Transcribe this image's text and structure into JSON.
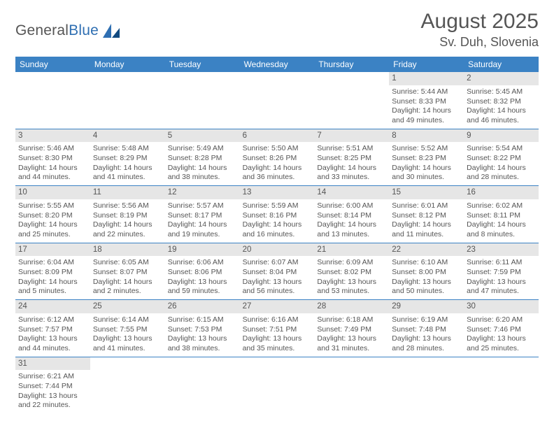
{
  "logo": {
    "word1": "General",
    "word2": "Blue"
  },
  "header": {
    "month_title": "August 2025",
    "location": "Sv. Duh, Slovenia"
  },
  "theme": {
    "header_bg": "#3b82c4",
    "header_text": "#ffffff",
    "daynum_bg": "#e6e6e6",
    "text_color": "#555555",
    "rule_color": "#3b82c4",
    "page_bg": "#ffffff",
    "month_title_fontsize": 30,
    "location_fontsize": 18,
    "weekday_fontsize": 12,
    "cell_fontsize": 10.5,
    "logo_fontsize": 21
  },
  "weekdays": [
    "Sunday",
    "Monday",
    "Tuesday",
    "Wednesday",
    "Thursday",
    "Friday",
    "Saturday"
  ],
  "first_weekday_index": 5,
  "days": [
    {
      "n": "1",
      "sunrise": "Sunrise: 5:44 AM",
      "sunset": "Sunset: 8:33 PM",
      "daylight": "Daylight: 14 hours and 49 minutes."
    },
    {
      "n": "2",
      "sunrise": "Sunrise: 5:45 AM",
      "sunset": "Sunset: 8:32 PM",
      "daylight": "Daylight: 14 hours and 46 minutes."
    },
    {
      "n": "3",
      "sunrise": "Sunrise: 5:46 AM",
      "sunset": "Sunset: 8:30 PM",
      "daylight": "Daylight: 14 hours and 44 minutes."
    },
    {
      "n": "4",
      "sunrise": "Sunrise: 5:48 AM",
      "sunset": "Sunset: 8:29 PM",
      "daylight": "Daylight: 14 hours and 41 minutes."
    },
    {
      "n": "5",
      "sunrise": "Sunrise: 5:49 AM",
      "sunset": "Sunset: 8:28 PM",
      "daylight": "Daylight: 14 hours and 38 minutes."
    },
    {
      "n": "6",
      "sunrise": "Sunrise: 5:50 AM",
      "sunset": "Sunset: 8:26 PM",
      "daylight": "Daylight: 14 hours and 36 minutes."
    },
    {
      "n": "7",
      "sunrise": "Sunrise: 5:51 AM",
      "sunset": "Sunset: 8:25 PM",
      "daylight": "Daylight: 14 hours and 33 minutes."
    },
    {
      "n": "8",
      "sunrise": "Sunrise: 5:52 AM",
      "sunset": "Sunset: 8:23 PM",
      "daylight": "Daylight: 14 hours and 30 minutes."
    },
    {
      "n": "9",
      "sunrise": "Sunrise: 5:54 AM",
      "sunset": "Sunset: 8:22 PM",
      "daylight": "Daylight: 14 hours and 28 minutes."
    },
    {
      "n": "10",
      "sunrise": "Sunrise: 5:55 AM",
      "sunset": "Sunset: 8:20 PM",
      "daylight": "Daylight: 14 hours and 25 minutes."
    },
    {
      "n": "11",
      "sunrise": "Sunrise: 5:56 AM",
      "sunset": "Sunset: 8:19 PM",
      "daylight": "Daylight: 14 hours and 22 minutes."
    },
    {
      "n": "12",
      "sunrise": "Sunrise: 5:57 AM",
      "sunset": "Sunset: 8:17 PM",
      "daylight": "Daylight: 14 hours and 19 minutes."
    },
    {
      "n": "13",
      "sunrise": "Sunrise: 5:59 AM",
      "sunset": "Sunset: 8:16 PM",
      "daylight": "Daylight: 14 hours and 16 minutes."
    },
    {
      "n": "14",
      "sunrise": "Sunrise: 6:00 AM",
      "sunset": "Sunset: 8:14 PM",
      "daylight": "Daylight: 14 hours and 13 minutes."
    },
    {
      "n": "15",
      "sunrise": "Sunrise: 6:01 AM",
      "sunset": "Sunset: 8:12 PM",
      "daylight": "Daylight: 14 hours and 11 minutes."
    },
    {
      "n": "16",
      "sunrise": "Sunrise: 6:02 AM",
      "sunset": "Sunset: 8:11 PM",
      "daylight": "Daylight: 14 hours and 8 minutes."
    },
    {
      "n": "17",
      "sunrise": "Sunrise: 6:04 AM",
      "sunset": "Sunset: 8:09 PM",
      "daylight": "Daylight: 14 hours and 5 minutes."
    },
    {
      "n": "18",
      "sunrise": "Sunrise: 6:05 AM",
      "sunset": "Sunset: 8:07 PM",
      "daylight": "Daylight: 14 hours and 2 minutes."
    },
    {
      "n": "19",
      "sunrise": "Sunrise: 6:06 AM",
      "sunset": "Sunset: 8:06 PM",
      "daylight": "Daylight: 13 hours and 59 minutes."
    },
    {
      "n": "20",
      "sunrise": "Sunrise: 6:07 AM",
      "sunset": "Sunset: 8:04 PM",
      "daylight": "Daylight: 13 hours and 56 minutes."
    },
    {
      "n": "21",
      "sunrise": "Sunrise: 6:09 AM",
      "sunset": "Sunset: 8:02 PM",
      "daylight": "Daylight: 13 hours and 53 minutes."
    },
    {
      "n": "22",
      "sunrise": "Sunrise: 6:10 AM",
      "sunset": "Sunset: 8:00 PM",
      "daylight": "Daylight: 13 hours and 50 minutes."
    },
    {
      "n": "23",
      "sunrise": "Sunrise: 6:11 AM",
      "sunset": "Sunset: 7:59 PM",
      "daylight": "Daylight: 13 hours and 47 minutes."
    },
    {
      "n": "24",
      "sunrise": "Sunrise: 6:12 AM",
      "sunset": "Sunset: 7:57 PM",
      "daylight": "Daylight: 13 hours and 44 minutes."
    },
    {
      "n": "25",
      "sunrise": "Sunrise: 6:14 AM",
      "sunset": "Sunset: 7:55 PM",
      "daylight": "Daylight: 13 hours and 41 minutes."
    },
    {
      "n": "26",
      "sunrise": "Sunrise: 6:15 AM",
      "sunset": "Sunset: 7:53 PM",
      "daylight": "Daylight: 13 hours and 38 minutes."
    },
    {
      "n": "27",
      "sunrise": "Sunrise: 6:16 AM",
      "sunset": "Sunset: 7:51 PM",
      "daylight": "Daylight: 13 hours and 35 minutes."
    },
    {
      "n": "28",
      "sunrise": "Sunrise: 6:18 AM",
      "sunset": "Sunset: 7:49 PM",
      "daylight": "Daylight: 13 hours and 31 minutes."
    },
    {
      "n": "29",
      "sunrise": "Sunrise: 6:19 AM",
      "sunset": "Sunset: 7:48 PM",
      "daylight": "Daylight: 13 hours and 28 minutes."
    },
    {
      "n": "30",
      "sunrise": "Sunrise: 6:20 AM",
      "sunset": "Sunset: 7:46 PM",
      "daylight": "Daylight: 13 hours and 25 minutes."
    },
    {
      "n": "31",
      "sunrise": "Sunrise: 6:21 AM",
      "sunset": "Sunset: 7:44 PM",
      "daylight": "Daylight: 13 hours and 22 minutes."
    }
  ]
}
